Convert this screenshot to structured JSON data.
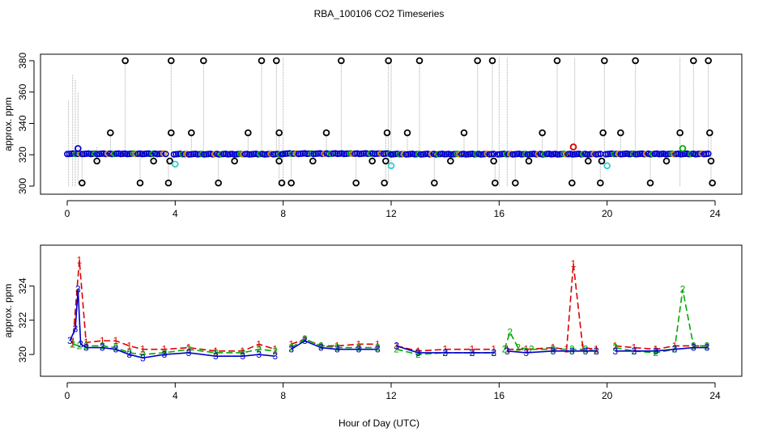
{
  "figure": {
    "title": "RBA_100106  CO2 Timeseries",
    "xlabel": "Hour of Day (UTC)"
  },
  "chart_data": [
    {
      "type": "scatter",
      "panel": "top",
      "title": "",
      "ylabel": "approx. ppm",
      "xlim": [
        0,
        24
      ],
      "ylim": [
        300,
        380
      ],
      "xticks": [
        "0",
        "4",
        "8",
        "12",
        "16",
        "20",
        "24"
      ],
      "yticks": [
        "300",
        "320",
        "340",
        "360",
        "380"
      ],
      "grid": false,
      "colors": {
        "spikes": "#aaaaaa",
        "black": "#000000",
        "blue": "#0000cc",
        "green": "#00aa00",
        "red": "#dd0000",
        "cyan": "#33cccc",
        "orange": "#dd8800"
      },
      "spike_lines": [
        {
          "x": 0.05,
          "y0": 300,
          "y1": 355
        },
        {
          "x": 0.2,
          "y0": 300,
          "y1": 371
        },
        {
          "x": 0.3,
          "y0": 300,
          "y1": 368
        },
        {
          "x": 0.4,
          "y0": 302,
          "y1": 360
        },
        {
          "x": 0.55,
          "y0": 302,
          "y1": 322
        },
        {
          "x": 1.1,
          "y0": 316,
          "y1": 325
        },
        {
          "x": 1.6,
          "y0": 320,
          "y1": 334
        },
        {
          "x": 2.15,
          "y0": 320,
          "y1": 380
        },
        {
          "x": 2.7,
          "y0": 302,
          "y1": 320
        },
        {
          "x": 3.2,
          "y0": 316,
          "y1": 321
        },
        {
          "x": 3.75,
          "y0": 302,
          "y1": 321
        },
        {
          "x": 3.85,
          "y0": 314,
          "y1": 380
        },
        {
          "x": 4.6,
          "y0": 320,
          "y1": 334
        },
        {
          "x": 5.05,
          "y0": 320,
          "y1": 380
        },
        {
          "x": 5.6,
          "y0": 302,
          "y1": 320
        },
        {
          "x": 6.2,
          "y0": 316,
          "y1": 321
        },
        {
          "x": 6.7,
          "y0": 320,
          "y1": 334
        },
        {
          "x": 7.2,
          "y0": 320,
          "y1": 380
        },
        {
          "x": 7.75,
          "y0": 320,
          "y1": 380
        },
        {
          "x": 7.85,
          "y0": 302,
          "y1": 334
        },
        {
          "x": 8.0,
          "y0": 300,
          "y1": 382
        },
        {
          "x": 8.3,
          "y0": 302,
          "y1": 321
        },
        {
          "x": 9.1,
          "y0": 316,
          "y1": 321
        },
        {
          "x": 9.6,
          "y0": 320,
          "y1": 334
        },
        {
          "x": 10.15,
          "y0": 320,
          "y1": 380
        },
        {
          "x": 10.7,
          "y0": 302,
          "y1": 320
        },
        {
          "x": 11.3,
          "y0": 316,
          "y1": 321
        },
        {
          "x": 11.8,
          "y0": 302,
          "y1": 334
        },
        {
          "x": 11.9,
          "y0": 302,
          "y1": 380
        },
        {
          "x": 12.0,
          "y0": 312,
          "y1": 382
        },
        {
          "x": 12.6,
          "y0": 320,
          "y1": 334
        },
        {
          "x": 13.05,
          "y0": 320,
          "y1": 380
        },
        {
          "x": 13.6,
          "y0": 302,
          "y1": 320
        },
        {
          "x": 14.2,
          "y0": 316,
          "y1": 321
        },
        {
          "x": 14.7,
          "y0": 320,
          "y1": 334
        },
        {
          "x": 15.2,
          "y0": 320,
          "y1": 380
        },
        {
          "x": 15.75,
          "y0": 320,
          "y1": 380
        },
        {
          "x": 15.85,
          "y0": 302,
          "y1": 321
        },
        {
          "x": 16.0,
          "y0": 300,
          "y1": 382
        },
        {
          "x": 16.3,
          "y0": 300,
          "y1": 382
        },
        {
          "x": 16.6,
          "y0": 302,
          "y1": 321
        },
        {
          "x": 17.1,
          "y0": 316,
          "y1": 321
        },
        {
          "x": 17.6,
          "y0": 320,
          "y1": 334
        },
        {
          "x": 18.15,
          "y0": 320,
          "y1": 380
        },
        {
          "x": 18.7,
          "y0": 302,
          "y1": 326
        },
        {
          "x": 18.8,
          "y0": 320,
          "y1": 382
        },
        {
          "x": 19.3,
          "y0": 316,
          "y1": 321
        },
        {
          "x": 19.75,
          "y0": 302,
          "y1": 321
        },
        {
          "x": 19.9,
          "y0": 312,
          "y1": 380
        },
        {
          "x": 20.5,
          "y0": 320,
          "y1": 334
        },
        {
          "x": 21.05,
          "y0": 320,
          "y1": 380
        },
        {
          "x": 21.6,
          "y0": 302,
          "y1": 320
        },
        {
          "x": 22.2,
          "y0": 316,
          "y1": 321
        },
        {
          "x": 22.7,
          "y0": 300,
          "y1": 382
        },
        {
          "x": 23.2,
          "y0": 320,
          "y1": 380
        },
        {
          "x": 23.75,
          "y0": 320,
          "y1": 380
        },
        {
          "x": 23.85,
          "y0": 302,
          "y1": 334
        }
      ],
      "outlier_points": [
        {
          "x": 0.4,
          "y": 324,
          "color": "blue"
        },
        {
          "x": 0.55,
          "y": 302,
          "color": "black"
        },
        {
          "x": 1.1,
          "y": 316,
          "color": "black"
        },
        {
          "x": 1.6,
          "y": 334,
          "color": "black"
        },
        {
          "x": 2.15,
          "y": 380,
          "color": "black"
        },
        {
          "x": 2.7,
          "y": 302,
          "color": "black"
        },
        {
          "x": 3.2,
          "y": 316,
          "color": "black"
        },
        {
          "x": 3.75,
          "y": 302,
          "color": "black"
        },
        {
          "x": 3.8,
          "y": 316,
          "color": "black"
        },
        {
          "x": 3.85,
          "y": 334,
          "color": "black"
        },
        {
          "x": 3.85,
          "y": 380,
          "color": "black"
        },
        {
          "x": 4.0,
          "y": 314,
          "color": "cyan"
        },
        {
          "x": 4.6,
          "y": 334,
          "color": "black"
        },
        {
          "x": 5.05,
          "y": 380,
          "color": "black"
        },
        {
          "x": 5.6,
          "y": 302,
          "color": "black"
        },
        {
          "x": 6.2,
          "y": 316,
          "color": "black"
        },
        {
          "x": 6.7,
          "y": 334,
          "color": "black"
        },
        {
          "x": 7.2,
          "y": 380,
          "color": "black"
        },
        {
          "x": 7.75,
          "y": 380,
          "color": "black"
        },
        {
          "x": 7.85,
          "y": 334,
          "color": "black"
        },
        {
          "x": 7.85,
          "y": 316,
          "color": "black"
        },
        {
          "x": 7.95,
          "y": 302,
          "color": "black"
        },
        {
          "x": 8.3,
          "y": 302,
          "color": "black"
        },
        {
          "x": 9.1,
          "y": 316,
          "color": "black"
        },
        {
          "x": 9.6,
          "y": 334,
          "color": "black"
        },
        {
          "x": 10.15,
          "y": 380,
          "color": "black"
        },
        {
          "x": 10.7,
          "y": 302,
          "color": "black"
        },
        {
          "x": 11.3,
          "y": 316,
          "color": "black"
        },
        {
          "x": 11.75,
          "y": 302,
          "color": "black"
        },
        {
          "x": 11.8,
          "y": 316,
          "color": "black"
        },
        {
          "x": 11.85,
          "y": 334,
          "color": "black"
        },
        {
          "x": 11.9,
          "y": 380,
          "color": "black"
        },
        {
          "x": 12.0,
          "y": 313,
          "color": "cyan"
        },
        {
          "x": 12.6,
          "y": 334,
          "color": "black"
        },
        {
          "x": 13.05,
          "y": 380,
          "color": "black"
        },
        {
          "x": 13.6,
          "y": 302,
          "color": "black"
        },
        {
          "x": 14.2,
          "y": 316,
          "color": "black"
        },
        {
          "x": 14.7,
          "y": 334,
          "color": "black"
        },
        {
          "x": 15.2,
          "y": 380,
          "color": "black"
        },
        {
          "x": 15.75,
          "y": 380,
          "color": "black"
        },
        {
          "x": 15.8,
          "y": 316,
          "color": "black"
        },
        {
          "x": 15.85,
          "y": 302,
          "color": "black"
        },
        {
          "x": 16.6,
          "y": 302,
          "color": "black"
        },
        {
          "x": 17.1,
          "y": 316,
          "color": "black"
        },
        {
          "x": 17.6,
          "y": 334,
          "color": "black"
        },
        {
          "x": 18.15,
          "y": 380,
          "color": "black"
        },
        {
          "x": 18.7,
          "y": 302,
          "color": "black"
        },
        {
          "x": 18.75,
          "y": 325,
          "color": "red"
        },
        {
          "x": 19.3,
          "y": 316,
          "color": "black"
        },
        {
          "x": 19.75,
          "y": 302,
          "color": "black"
        },
        {
          "x": 19.8,
          "y": 316,
          "color": "black"
        },
        {
          "x": 19.85,
          "y": 334,
          "color": "black"
        },
        {
          "x": 19.9,
          "y": 380,
          "color": "black"
        },
        {
          "x": 20.0,
          "y": 313,
          "color": "cyan"
        },
        {
          "x": 20.5,
          "y": 334,
          "color": "black"
        },
        {
          "x": 21.05,
          "y": 380,
          "color": "black"
        },
        {
          "x": 21.6,
          "y": 302,
          "color": "black"
        },
        {
          "x": 22.2,
          "y": 316,
          "color": "black"
        },
        {
          "x": 22.7,
          "y": 334,
          "color": "black"
        },
        {
          "x": 22.8,
          "y": 324,
          "color": "green"
        },
        {
          "x": 23.2,
          "y": 380,
          "color": "black"
        },
        {
          "x": 23.75,
          "y": 380,
          "color": "black"
        },
        {
          "x": 23.8,
          "y": 334,
          "color": "black"
        },
        {
          "x": 23.85,
          "y": 316,
          "color": "black"
        },
        {
          "x": 23.9,
          "y": 302,
          "color": "black"
        }
      ],
      "baseline_segments": [
        {
          "x_start": 0.0,
          "x_end": 3.65,
          "y": 320.6
        },
        {
          "x_start": 3.95,
          "x_end": 7.95,
          "y": 320.4
        },
        {
          "x_start": 8.0,
          "x_end": 11.95,
          "y": 320.7
        },
        {
          "x_start": 12.0,
          "x_end": 15.8,
          "y": 320.4
        },
        {
          "x_start": 15.95,
          "x_end": 19.75,
          "y": 320.4
        },
        {
          "x_start": 19.95,
          "x_end": 23.75,
          "y": 320.5
        }
      ]
    },
    {
      "type": "line",
      "panel": "bottom",
      "title": "",
      "ylabel": "approx. ppm",
      "xlim": [
        0,
        24
      ],
      "ylim": [
        319.2,
        326
      ],
      "xticks": [
        "0",
        "4",
        "8",
        "12",
        "16",
        "20",
        "24"
      ],
      "yticks": [
        "320",
        "322",
        "324"
      ],
      "grid": false,
      "series": [
        {
          "marker": "1",
          "color": "#dd0000",
          "dash": "8,4",
          "x": [
            0.2,
            0.45,
            0.7,
            1.3,
            1.8,
            2.3,
            2.8,
            3.6,
            4.5,
            5.5,
            6.5,
            7.1,
            7.7,
            8.3,
            8.8,
            9.4,
            10,
            10.8,
            11.5,
            12.2,
            13,
            14,
            15,
            15.8,
            16.3,
            17,
            18,
            18.5,
            18.75,
            19.1,
            19.6,
            20.3,
            21,
            21.8,
            22.5,
            23.2,
            23.7
          ],
          "y": [
            320.6,
            325.5,
            320.7,
            320.8,
            320.8,
            320.5,
            320.3,
            320.3,
            320.4,
            320.2,
            320.2,
            320.6,
            320.3,
            320.6,
            320.9,
            320.5,
            320.5,
            320.6,
            320.6,
            320.5,
            320.2,
            320.3,
            320.3,
            320.3,
            320.3,
            320.3,
            320.4,
            320.3,
            325.3,
            320.4,
            320.3,
            320.5,
            320.4,
            320.3,
            320.5,
            320.5,
            320.5
          ]
        },
        {
          "marker": "2",
          "color": "#00aa00",
          "dash": "8,4",
          "x": [
            0.2,
            0.45,
            0.7,
            1.3,
            1.8,
            2.3,
            2.8,
            3.6,
            4.5,
            5.5,
            6.5,
            7.1,
            7.7,
            8.3,
            8.8,
            9.4,
            10,
            10.8,
            11.5,
            12.2,
            13,
            14,
            15,
            15.8,
            16.2,
            16.4,
            16.7,
            17.2,
            18,
            18.7,
            19.2,
            19.6,
            20.3,
            21,
            21.8,
            22.5,
            22.8,
            23.2,
            23.7
          ],
          "y": [
            320.6,
            320.5,
            320.5,
            320.5,
            320.4,
            320.1,
            320.0,
            320.1,
            320.3,
            320.1,
            320.1,
            320.3,
            320.2,
            320.4,
            320.9,
            320.5,
            320.4,
            320.4,
            320.4,
            320.3,
            320.0,
            320.1,
            320.1,
            320.1,
            320.3,
            321.3,
            320.4,
            320.3,
            320.3,
            320.3,
            320.3,
            320.2,
            320.4,
            320.2,
            320.1,
            320.3,
            323.8,
            320.5,
            320.5
          ]
        },
        {
          "marker": "3",
          "color": "#0000cc",
          "dash": "",
          "x": [
            0.1,
            0.3,
            0.4,
            0.5,
            0.7,
            1.3,
            1.8,
            2.3,
            2.8,
            3.6,
            4.5,
            5.5,
            6.5,
            7.1,
            7.7,
            8.3,
            8.8,
            9.4,
            10,
            10.8,
            11.5,
            12.2,
            13,
            14,
            15,
            15.8,
            16.3,
            17,
            18,
            18.7,
            19.2,
            19.6,
            20.3,
            21,
            21.8,
            22.5,
            23.2,
            23.7
          ],
          "y": [
            320.8,
            321.5,
            323.8,
            320.6,
            320.4,
            320.4,
            320.3,
            320.0,
            319.8,
            320.0,
            320.1,
            319.9,
            319.9,
            320.0,
            319.9,
            320.3,
            320.8,
            320.4,
            320.3,
            320.3,
            320.3,
            320.5,
            320.1,
            320.1,
            320.1,
            320.1,
            320.2,
            320.1,
            320.2,
            320.2,
            320.2,
            320.2,
            320.2,
            320.2,
            320.2,
            320.3,
            320.4,
            320.4
          ]
        }
      ],
      "gaps": [
        [
          8.0,
          8.0
        ],
        [
          12.0,
          12.0
        ],
        [
          16.0,
          16.0
        ],
        [
          20.0,
          20.0
        ]
      ]
    }
  ]
}
